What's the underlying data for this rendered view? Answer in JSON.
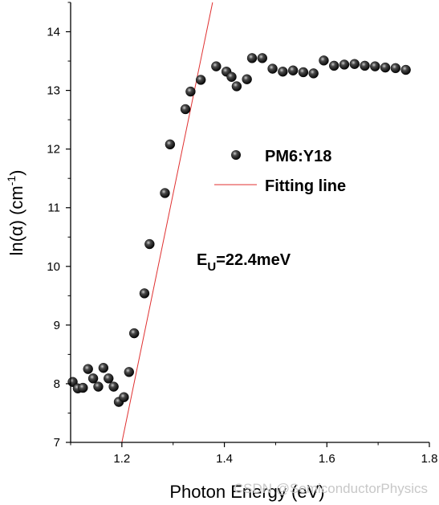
{
  "chart_data": {
    "type": "scatter",
    "xlabel": "Photon Energy (eV)",
    "ylabel_prefix": "ln(α) (cm",
    "ylabel_sup": "-1",
    "ylabel_suffix": ")",
    "xlim": [
      1.1,
      1.8
    ],
    "ylim": [
      7,
      14.5
    ],
    "xticks": [
      1.2,
      1.4,
      1.6,
      1.8
    ],
    "yticks": [
      7,
      8,
      9,
      10,
      11,
      12,
      13,
      14
    ],
    "xtick_labels": [
      "1.2",
      "1.4",
      "1.6",
      "1.8"
    ],
    "ytick_labels": [
      "7",
      "8",
      "9",
      "10",
      "11",
      "12",
      "13",
      "14"
    ],
    "grid": false,
    "legend_position": "right-middle",
    "series": [
      {
        "name": "PM6:Y18",
        "kind": "scatter",
        "marker_color": "#111111",
        "x": [
          1.104,
          1.114,
          1.124,
          1.134,
          1.144,
          1.154,
          1.164,
          1.174,
          1.184,
          1.194,
          1.204,
          1.214,
          1.224,
          1.244,
          1.254,
          1.284,
          1.294,
          1.324,
          1.334,
          1.354,
          1.384,
          1.404,
          1.414,
          1.424,
          1.444,
          1.454,
          1.474,
          1.494,
          1.514,
          1.534,
          1.554,
          1.574,
          1.594,
          1.614,
          1.634,
          1.654,
          1.674,
          1.694,
          1.714,
          1.734,
          1.754
        ],
        "y": [
          8.03,
          7.92,
          7.93,
          8.25,
          8.09,
          7.95,
          8.27,
          8.09,
          7.95,
          7.69,
          7.77,
          8.2,
          8.86,
          9.54,
          10.38,
          11.25,
          12.08,
          12.68,
          12.98,
          13.18,
          13.41,
          13.32,
          13.23,
          13.07,
          13.19,
          13.55,
          13.55,
          13.37,
          13.32,
          13.34,
          13.31,
          13.29,
          13.51,
          13.42,
          13.44,
          13.45,
          13.42,
          13.41,
          13.39,
          13.38,
          13.35
        ]
      },
      {
        "name": "Fitting line",
        "kind": "line",
        "color": "#e03030",
        "x": [
          1.2,
          1.377
        ],
        "y": [
          7.0,
          14.5
        ]
      }
    ],
    "annotation_main": "E",
    "annotation_sub": "U",
    "annotation_rest": "=22.4meV"
  },
  "watermark": "CSDN @SemiconductorPhysics"
}
